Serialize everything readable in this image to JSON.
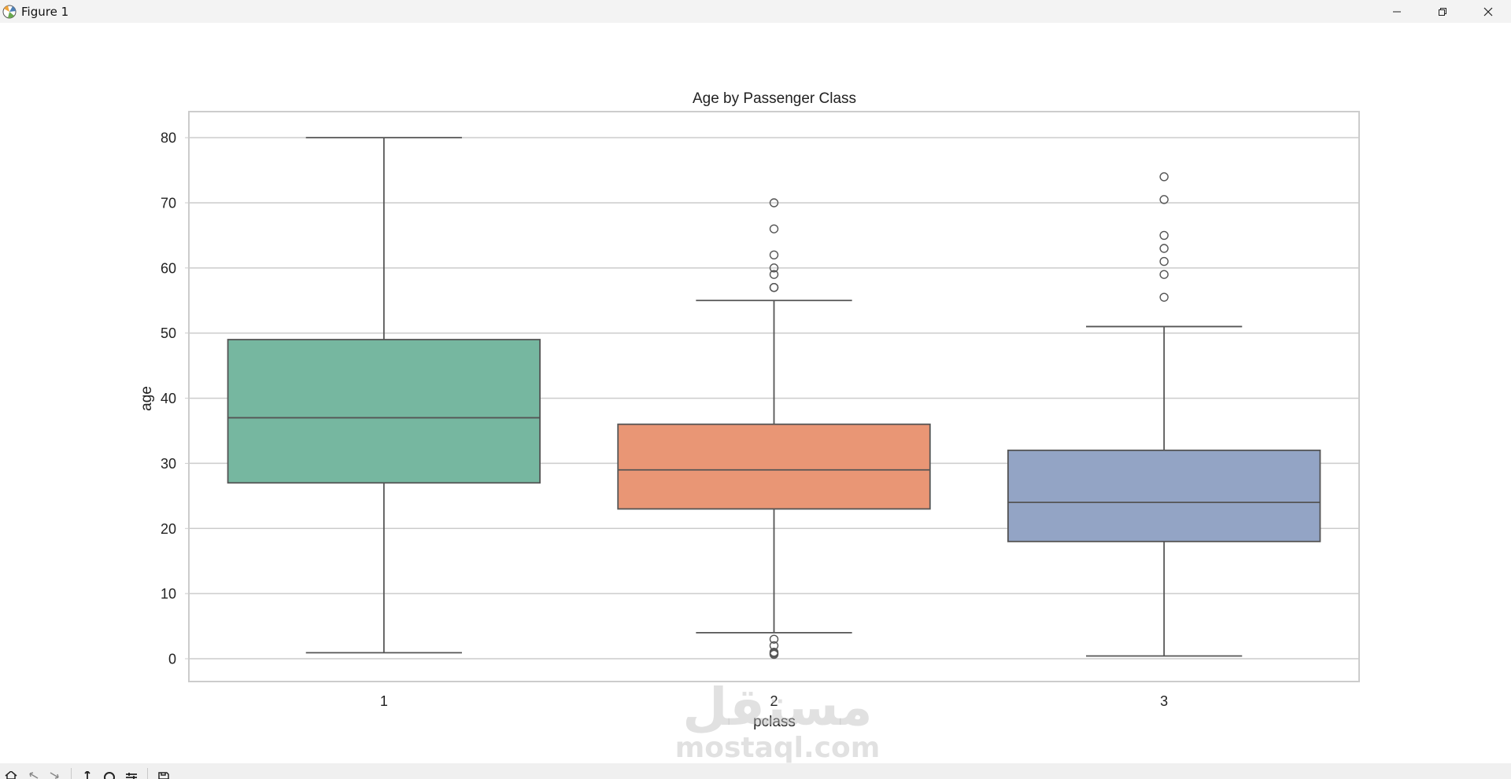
{
  "window": {
    "title": "Figure 1"
  },
  "watermark": {
    "text": "mostaql.com",
    "arabic": "مستقل"
  },
  "colors": {
    "box_1": "#76b7a0",
    "box_2": "#e99675",
    "box_3": "#93a4c5",
    "lines": "#555555",
    "grid": "#cccccc",
    "frame": "#cccccc"
  },
  "chart_data": {
    "type": "box",
    "title": "Age by Passenger Class",
    "xlabel": "pclass",
    "ylabel": "age",
    "categories": [
      "1",
      "2",
      "3"
    ],
    "ylim": [
      -3.5,
      84
    ],
    "yticks": [
      0,
      10,
      20,
      30,
      40,
      50,
      60,
      70,
      80
    ],
    "grid": true,
    "boxes": [
      {
        "category": "1",
        "whisker_low": 0.92,
        "q1": 27,
        "median": 37,
        "q3": 49,
        "whisker_high": 80,
        "outliers": []
      },
      {
        "category": "2",
        "whisker_low": 4,
        "q1": 23,
        "median": 29,
        "q3": 36,
        "whisker_high": 55,
        "outliers": [
          70,
          66,
          62,
          60,
          59,
          57,
          57,
          3,
          2,
          1,
          0.83,
          0.67
        ]
      },
      {
        "category": "3",
        "whisker_low": 0.42,
        "q1": 18,
        "median": 24,
        "q3": 32,
        "whisker_high": 51,
        "outliers": [
          74,
          70.5,
          65,
          63,
          61,
          59,
          55.5
        ]
      }
    ]
  }
}
